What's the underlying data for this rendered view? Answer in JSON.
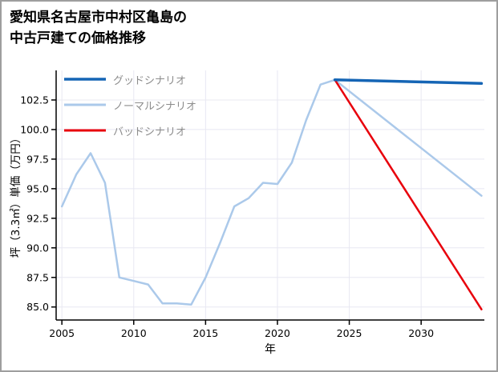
{
  "title": {
    "line1": "愛知県名古屋市中村区亀島の",
    "line2": "中古戸建ての価格推移"
  },
  "chart_data": {
    "type": "line",
    "title": "愛知県名古屋市中村区亀島の中古戸建ての価格推移",
    "xlabel": "年",
    "ylabel": "坪（3.3㎡）単価（万円）",
    "xlim": [
      2004.6,
      2034.4
    ],
    "ylim": [
      83.9,
      105.0
    ],
    "x_ticks": [
      2005,
      2010,
      2015,
      2020,
      2025,
      2030
    ],
    "y_ticks": [
      85.0,
      87.5,
      90.0,
      92.5,
      95.0,
      97.5,
      100.0,
      102.5
    ],
    "grid": true,
    "legend_position": "top-left",
    "series": [
      {
        "name": "グッドシナリオ",
        "color": "#1565b5",
        "line_width": 3.5,
        "x": [
          2024,
          2034.2
        ],
        "y": [
          104.2,
          103.9
        ]
      },
      {
        "name": "ノーマルシナリオ",
        "color": "#abc9ea",
        "line_width": 2.5,
        "x": [
          2005,
          2006,
          2007,
          2008,
          2009,
          2010,
          2011,
          2012,
          2013,
          2014,
          2015,
          2016,
          2017,
          2018,
          2019,
          2020,
          2021,
          2022,
          2023,
          2024,
          2034.2
        ],
        "y": [
          93.5,
          96.2,
          98.0,
          95.5,
          87.5,
          87.2,
          86.9,
          85.3,
          85.3,
          85.2,
          87.5,
          90.4,
          93.5,
          94.2,
          95.5,
          95.4,
          97.2,
          100.8,
          103.8,
          104.2,
          94.4
        ]
      },
      {
        "name": "バッドシナリオ",
        "color": "#e8000c",
        "line_width": 2.5,
        "x": [
          2024,
          2034.2
        ],
        "y": [
          104.2,
          84.8
        ]
      }
    ],
    "colors": {
      "grid": "#e8e8f2",
      "axis": "#000000",
      "legend_text": "#8c8c8c"
    }
  }
}
